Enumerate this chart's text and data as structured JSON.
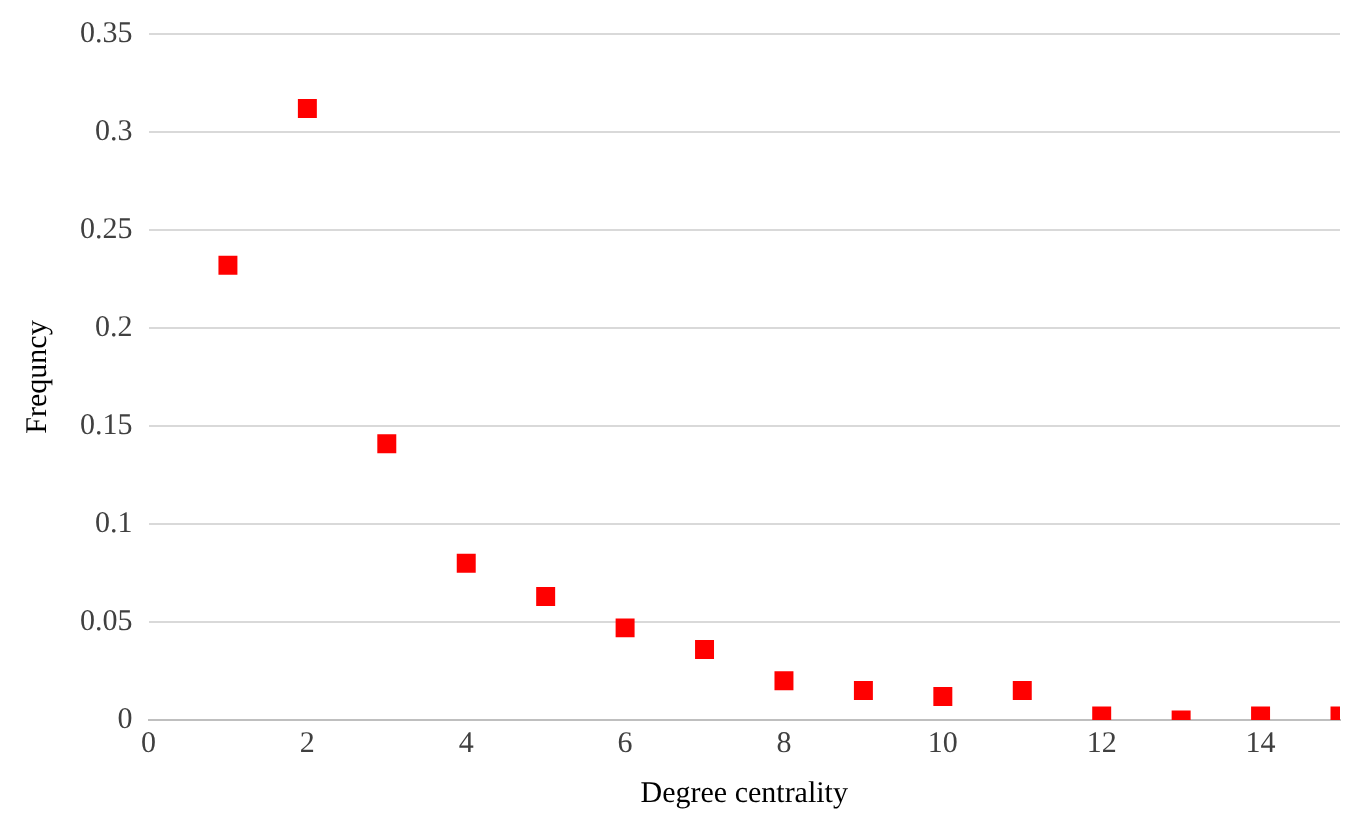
{
  "chart_data": {
    "type": "scatter",
    "xlabel": "Degree centrality",
    "ylabel": "Frequncy",
    "x": [
      1,
      2,
      3,
      4,
      5,
      6,
      7,
      8,
      9,
      10,
      11,
      12,
      13,
      14,
      15
    ],
    "series": [
      {
        "color": "#ff0000",
        "values": [
          0.232,
          0.312,
          0.141,
          0.08,
          0.063,
          0.047,
          0.036,
          0.02,
          0.015,
          0.012,
          0.015,
          0.002,
          0,
          0.002,
          0.002
        ]
      }
    ],
    "xlim": [
      0,
      15
    ],
    "xticks": [
      0,
      2,
      4,
      6,
      8,
      10,
      12,
      14
    ],
    "ylim": [
      0,
      0.35
    ],
    "yticks": [
      0,
      0.05,
      0.1,
      0.15,
      0.2,
      0.25,
      0.3,
      0.35
    ],
    "grid": "y",
    "marker": "square",
    "legend": false
  }
}
